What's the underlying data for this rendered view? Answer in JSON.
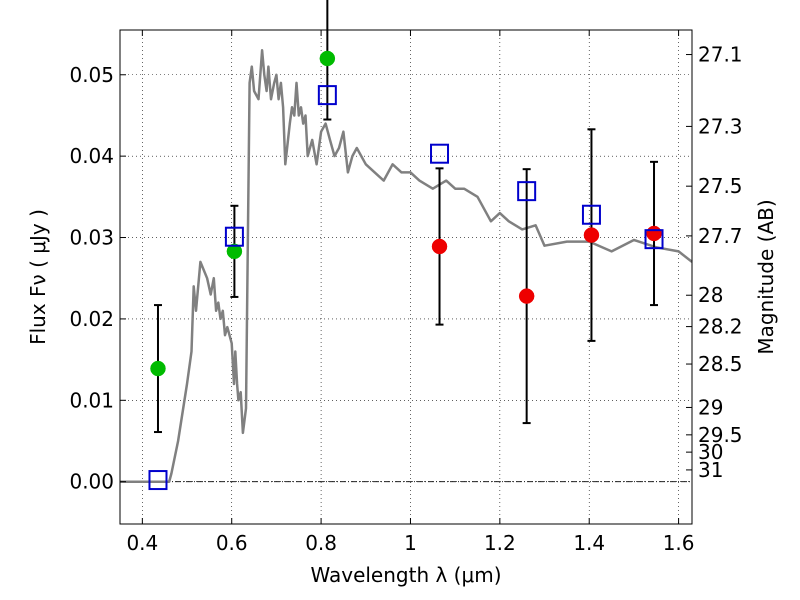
{
  "chart_data": {
    "type": "scatter",
    "xlabel": "Wavelength  λ (μm)",
    "ylabel": "Flux  Fν  ( μJy )",
    "ylabel_right": "Magnitude (AB)",
    "xlim": [
      0.35,
      1.63
    ],
    "ylim": [
      -0.0052,
      0.0555
    ],
    "x_ticks": [
      {
        "value": 0.4,
        "label": "0.4"
      },
      {
        "value": 0.6,
        "label": "0.6"
      },
      {
        "value": 0.8,
        "label": "0.8"
      },
      {
        "value": 1.0,
        "label": "1"
      },
      {
        "value": 1.2,
        "label": "1.2"
      },
      {
        "value": 1.4,
        "label": "1.4"
      },
      {
        "value": 1.6,
        "label": "1.6"
      }
    ],
    "y_ticks": [
      {
        "value": 0.0,
        "label": "0.00"
      },
      {
        "value": 0.01,
        "label": "0.01"
      },
      {
        "value": 0.02,
        "label": "0.02"
      },
      {
        "value": 0.03,
        "label": "0.03"
      },
      {
        "value": 0.04,
        "label": "0.04"
      },
      {
        "value": 0.05,
        "label": "0.05"
      }
    ],
    "y2_ticks": [
      {
        "value": 27.1,
        "label": "27.1"
      },
      {
        "value": 27.3,
        "label": "27.3"
      },
      {
        "value": 27.5,
        "label": "27.5"
      },
      {
        "value": 27.7,
        "label": "27.7"
      },
      {
        "value": 28.0,
        "label": "28"
      },
      {
        "value": 28.2,
        "label": "28.2"
      },
      {
        "value": 28.5,
        "label": "28.5"
      },
      {
        "value": 29.0,
        "label": "29"
      },
      {
        "value": 29.5,
        "label": "29.5"
      },
      {
        "value": 30.0,
        "label": "30"
      },
      {
        "value": 31.0,
        "label": "31"
      }
    ],
    "grid": true,
    "colors": {
      "model": "#808080",
      "green_points": "#00bb00",
      "red_points": "#ee0000",
      "squares": "#0000cc",
      "errorbars": "#000000"
    },
    "model_sed": {
      "x": [
        0.35,
        0.46,
        0.465,
        0.48,
        0.5,
        0.51,
        0.515,
        0.52,
        0.53,
        0.545,
        0.553,
        0.56,
        0.565,
        0.57,
        0.575,
        0.58,
        0.585,
        0.59,
        0.6,
        0.605,
        0.608,
        0.612,
        0.615,
        0.62,
        0.625,
        0.632,
        0.64,
        0.645,
        0.65,
        0.66,
        0.668,
        0.673,
        0.678,
        0.682,
        0.688,
        0.695,
        0.7,
        0.705,
        0.71,
        0.715,
        0.72,
        0.73,
        0.735,
        0.74,
        0.745,
        0.75,
        0.755,
        0.76,
        0.765,
        0.77,
        0.78,
        0.79,
        0.8,
        0.81,
        0.82,
        0.83,
        0.84,
        0.85,
        0.86,
        0.87,
        0.88,
        0.9,
        0.92,
        0.94,
        0.96,
        0.98,
        1.0,
        1.02,
        1.05,
        1.08,
        1.1,
        1.12,
        1.15,
        1.18,
        1.2,
        1.22,
        1.25,
        1.28,
        1.3,
        1.35,
        1.4,
        1.45,
        1.5,
        1.55,
        1.6,
        1.63
      ],
      "y": [
        0.0,
        0.0,
        0.001,
        0.005,
        0.012,
        0.016,
        0.024,
        0.021,
        0.027,
        0.025,
        0.023,
        0.025,
        0.021,
        0.022,
        0.02,
        0.021,
        0.018,
        0.019,
        0.017,
        0.012,
        0.016,
        0.012,
        0.01,
        0.011,
        0.006,
        0.009,
        0.049,
        0.051,
        0.048,
        0.047,
        0.053,
        0.05,
        0.048,
        0.051,
        0.047,
        0.049,
        0.05,
        0.047,
        0.049,
        0.046,
        0.039,
        0.044,
        0.046,
        0.045,
        0.049,
        0.045,
        0.046,
        0.044,
        0.045,
        0.04,
        0.042,
        0.039,
        0.043,
        0.044,
        0.042,
        0.04,
        0.041,
        0.043,
        0.038,
        0.04,
        0.041,
        0.039,
        0.038,
        0.037,
        0.039,
        0.038,
        0.038,
        0.037,
        0.036,
        0.037,
        0.036,
        0.036,
        0.035,
        0.032,
        0.033,
        0.032,
        0.031,
        0.0315,
        0.029,
        0.0295,
        0.0295,
        0.0283,
        0.0297,
        0.0288,
        0.0283,
        0.027
      ]
    },
    "series": [
      {
        "marker": "circle",
        "color": "green",
        "points": [
          {
            "x": 0.435,
            "y": 0.0139,
            "err": 0.0078
          },
          {
            "x": 0.606,
            "y": 0.0283,
            "err": 0.0056
          },
          {
            "x": 0.814,
            "y": 0.052,
            "err": 0.0075
          }
        ]
      },
      {
        "marker": "circle",
        "color": "red",
        "points": [
          {
            "x": 1.065,
            "y": 0.0289,
            "err": 0.0096
          },
          {
            "x": 1.26,
            "y": 0.0228,
            "err": 0.0156
          },
          {
            "x": 1.405,
            "y": 0.0303,
            "err": 0.013
          },
          {
            "x": 1.545,
            "y": 0.0305,
            "err": 0.0088
          }
        ]
      },
      {
        "marker": "open-square",
        "color": "blue",
        "points": [
          {
            "x": 0.435,
            "y": 0.0002
          },
          {
            "x": 0.606,
            "y": 0.0301
          },
          {
            "x": 0.814,
            "y": 0.0475
          },
          {
            "x": 1.065,
            "y": 0.0403
          },
          {
            "x": 1.26,
            "y": 0.0357
          },
          {
            "x": 1.405,
            "y": 0.0328
          },
          {
            "x": 1.545,
            "y": 0.0298
          }
        ]
      }
    ]
  }
}
